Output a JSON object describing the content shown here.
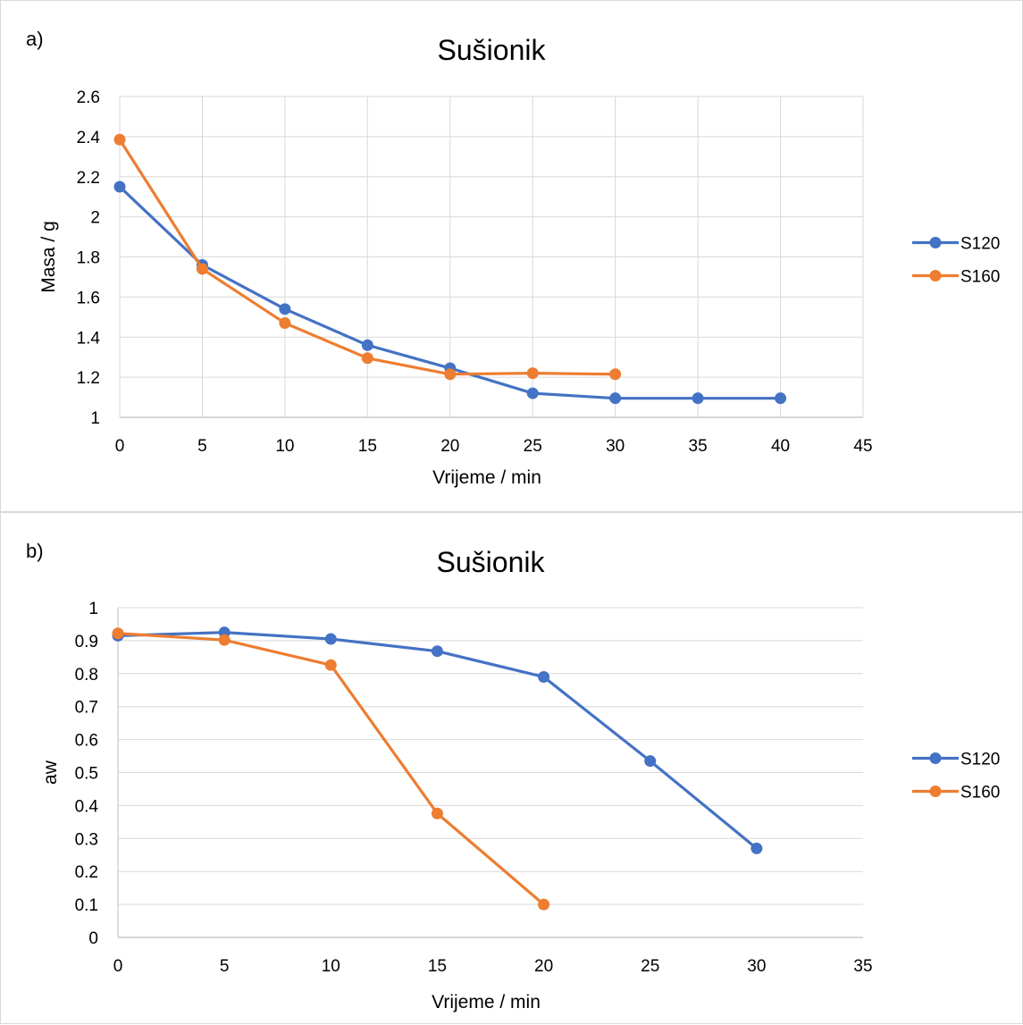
{
  "chart_data": [
    {
      "type": "line",
      "panel_label": "a)",
      "title": "Sušionik",
      "xlabel": "Vrijeme / min",
      "ylabel": "Masa / g",
      "xlim": [
        0,
        45
      ],
      "ylim": [
        1,
        2.6
      ],
      "xticks": [
        0,
        5,
        10,
        15,
        20,
        25,
        30,
        35,
        40,
        45
      ],
      "yticks": [
        1,
        1.2,
        1.4,
        1.6,
        1.8,
        2,
        2.2,
        2.4,
        2.6
      ],
      "ytick_labels": [
        "1",
        "1.2",
        "1.4",
        "1.6",
        "1.8",
        "2",
        "2.2",
        "2.4",
        "2.6"
      ],
      "grid": "both",
      "legend_position": "right",
      "series": [
        {
          "name": "S120",
          "color": "#4472C4",
          "x": [
            0,
            5,
            10,
            15,
            20,
            25,
            30,
            35,
            40
          ],
          "y": [
            2.15,
            1.76,
            1.54,
            1.36,
            1.245,
            1.12,
            1.095,
            1.095,
            1.095
          ]
        },
        {
          "name": "S160",
          "color": "#ED7D31",
          "x": [
            0,
            5,
            10,
            15,
            20,
            25,
            30
          ],
          "y": [
            2.385,
            1.74,
            1.47,
            1.295,
            1.215,
            1.22,
            1.215
          ]
        }
      ]
    },
    {
      "type": "line",
      "panel_label": "b)",
      "title": "Sušionik",
      "xlabel": "Vrijeme / min",
      "ylabel": "aw",
      "xlim": [
        0,
        35
      ],
      "ylim": [
        0,
        1
      ],
      "xticks": [
        0,
        5,
        10,
        15,
        20,
        25,
        30,
        35
      ],
      "yticks": [
        0,
        0.1,
        0.2,
        0.3,
        0.4,
        0.5,
        0.6,
        0.7,
        0.8,
        0.9,
        1
      ],
      "ytick_labels": [
        "0",
        "0.1",
        "0.2",
        "0.3",
        "0.4",
        "0.5",
        "0.6",
        "0.7",
        "0.8",
        "0.9",
        "1"
      ],
      "grid": "horizontal",
      "legend_position": "right",
      "series": [
        {
          "name": "S120",
          "color": "#4472C4",
          "x": [
            0,
            5,
            10,
            15,
            20,
            25,
            30
          ],
          "y": [
            0.915,
            0.925,
            0.905,
            0.868,
            0.79,
            0.535,
            0.27
          ]
        },
        {
          "name": "S160",
          "color": "#ED7D31",
          "x": [
            0,
            5,
            10,
            15,
            20
          ],
          "y": [
            0.922,
            0.902,
            0.826,
            0.376,
            0.1
          ]
        }
      ]
    }
  ]
}
